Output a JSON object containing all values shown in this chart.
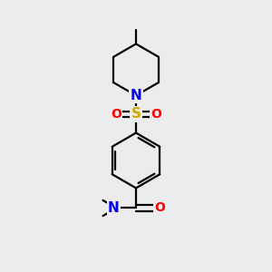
{
  "background_color": "#ececec",
  "atom_colors": {
    "C": "#000000",
    "N": "#0000ee",
    "O": "#ff0000",
    "S": "#ccaa00"
  },
  "bond_color": "#000000",
  "bond_width": 1.6,
  "figsize": [
    3.0,
    3.0
  ],
  "dpi": 100,
  "xlim": [
    -1.8,
    1.8
  ],
  "ylim": [
    -3.0,
    3.0
  ]
}
